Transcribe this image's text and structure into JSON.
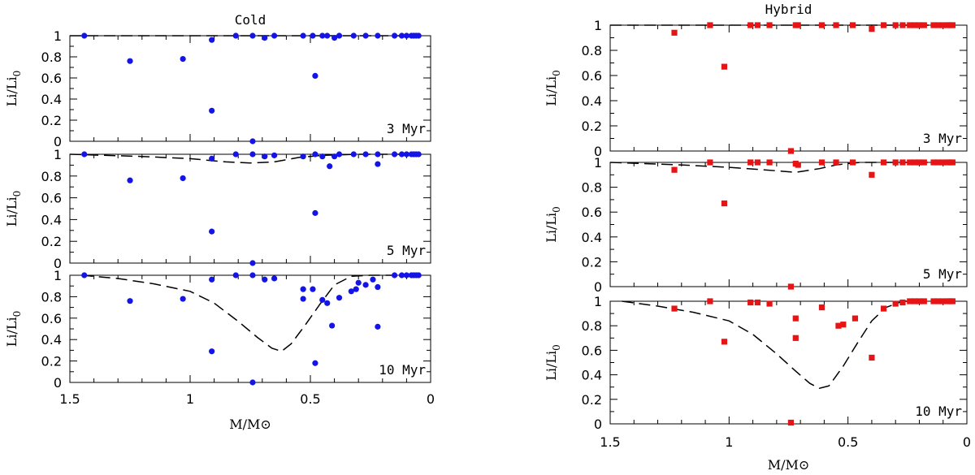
{
  "chart_data": {
    "type": "scatter",
    "x_ticks": [
      "1.5",
      "1",
      "0.5",
      "0"
    ],
    "y_ticks": [
      "0",
      "0.2",
      "0.4",
      "0.6",
      "0.8",
      "1"
    ],
    "xlim": [
      1.5,
      0
    ],
    "ylim": [
      0,
      1
    ],
    "xlabel": "M/M⊙",
    "ylabel": "Li/Li0",
    "ylabel_base": "Li/Li",
    "ylabel_sub": "0",
    "groups": [
      {
        "title": "Cold",
        "marker": "circle",
        "color": "#1414e6",
        "panels": [
          {
            "label": "3 Myr",
            "points": [
              [
                1.44,
                1.0
              ],
              [
                1.25,
                0.76
              ],
              [
                1.03,
                0.78
              ],
              [
                0.91,
                0.29
              ],
              [
                0.91,
                0.96
              ],
              [
                0.81,
                1.0
              ],
              [
                0.74,
                0.0
              ],
              [
                0.74,
                1.0
              ],
              [
                0.69,
                0.98
              ],
              [
                0.65,
                1.0
              ],
              [
                0.53,
                1.0
              ],
              [
                0.49,
                1.0
              ],
              [
                0.48,
                0.62
              ],
              [
                0.45,
                1.0
              ],
              [
                0.43,
                1.0
              ],
              [
                0.4,
                0.98
              ],
              [
                0.38,
                1.0
              ],
              [
                0.32,
                1.0
              ],
              [
                0.27,
                1.0
              ],
              [
                0.22,
                1.0
              ],
              [
                0.15,
                1.0
              ],
              [
                0.12,
                1.0
              ],
              [
                0.1,
                1.0
              ],
              [
                0.08,
                1.0
              ],
              [
                0.07,
                1.0
              ],
              [
                0.06,
                1.0
              ],
              [
                0.05,
                1.0
              ]
            ],
            "curve": [
              [
                1.5,
                1.0
              ],
              [
                0.05,
                1.0
              ]
            ]
          },
          {
            "label": "5 Myr",
            "points": [
              [
                1.44,
                1.0
              ],
              [
                1.25,
                0.76
              ],
              [
                1.03,
                0.78
              ],
              [
                0.91,
                0.29
              ],
              [
                0.91,
                0.96
              ],
              [
                0.81,
                1.0
              ],
              [
                0.74,
                0.0
              ],
              [
                0.74,
                1.0
              ],
              [
                0.69,
                0.98
              ],
              [
                0.65,
                0.99
              ],
              [
                0.53,
                0.98
              ],
              [
                0.48,
                1.0
              ],
              [
                0.48,
                0.46
              ],
              [
                0.45,
                0.98
              ],
              [
                0.42,
                0.89
              ],
              [
                0.4,
                0.98
              ],
              [
                0.38,
                1.0
              ],
              [
                0.32,
                1.0
              ],
              [
                0.27,
                1.0
              ],
              [
                0.22,
                1.0
              ],
              [
                0.22,
                0.91
              ],
              [
                0.15,
                1.0
              ],
              [
                0.12,
                1.0
              ],
              [
                0.1,
                1.0
              ],
              [
                0.08,
                1.0
              ],
              [
                0.07,
                1.0
              ],
              [
                0.06,
                1.0
              ],
              [
                0.05,
                1.0
              ]
            ],
            "curve": [
              [
                1.5,
                1.0
              ],
              [
                1.2,
                0.98
              ],
              [
                1.0,
                0.96
              ],
              [
                0.85,
                0.93
              ],
              [
                0.75,
                0.92
              ],
              [
                0.65,
                0.93
              ],
              [
                0.55,
                0.97
              ],
              [
                0.45,
                0.99
              ],
              [
                0.3,
                1.0
              ],
              [
                0.05,
                1.0
              ]
            ]
          },
          {
            "label": "10 Myr",
            "points": [
              [
                1.44,
                1.0
              ],
              [
                1.25,
                0.76
              ],
              [
                1.03,
                0.78
              ],
              [
                0.91,
                0.29
              ],
              [
                0.91,
                0.96
              ],
              [
                0.81,
                1.0
              ],
              [
                0.74,
                0.0
              ],
              [
                0.74,
                1.0
              ],
              [
                0.69,
                0.96
              ],
              [
                0.65,
                0.97
              ],
              [
                0.53,
                0.87
              ],
              [
                0.53,
                0.78
              ],
              [
                0.49,
                0.87
              ],
              [
                0.48,
                0.18
              ],
              [
                0.45,
                0.77
              ],
              [
                0.43,
                0.74
              ],
              [
                0.41,
                0.53
              ],
              [
                0.38,
                0.79
              ],
              [
                0.33,
                0.85
              ],
              [
                0.31,
                0.87
              ],
              [
                0.3,
                0.93
              ],
              [
                0.27,
                0.91
              ],
              [
                0.24,
                0.96
              ],
              [
                0.22,
                0.52
              ],
              [
                0.22,
                0.89
              ],
              [
                0.15,
                1.0
              ],
              [
                0.12,
                1.0
              ],
              [
                0.1,
                1.0
              ],
              [
                0.08,
                1.0
              ],
              [
                0.07,
                1.0
              ],
              [
                0.06,
                1.0
              ],
              [
                0.05,
                1.0
              ]
            ],
            "curve": [
              [
                1.45,
                1.0
              ],
              [
                1.3,
                0.97
              ],
              [
                1.15,
                0.92
              ],
              [
                1.0,
                0.85
              ],
              [
                0.9,
                0.74
              ],
              [
                0.8,
                0.57
              ],
              [
                0.72,
                0.42
              ],
              [
                0.66,
                0.32
              ],
              [
                0.62,
                0.29
              ],
              [
                0.58,
                0.36
              ],
              [
                0.52,
                0.54
              ],
              [
                0.46,
                0.73
              ],
              [
                0.4,
                0.91
              ],
              [
                0.33,
                0.99
              ],
              [
                0.25,
                1.0
              ],
              [
                0.05,
                1.0
              ]
            ]
          }
        ]
      },
      {
        "title": "Hybrid",
        "marker": "square",
        "color": "#e61414",
        "panels": [
          {
            "label": "3 Myr",
            "points": [
              [
                1.23,
                0.94
              ],
              [
                1.08,
                1.0
              ],
              [
                1.02,
                0.67
              ],
              [
                0.91,
                1.0
              ],
              [
                0.88,
                1.0
              ],
              [
                0.83,
                1.0
              ],
              [
                0.74,
                0.0
              ],
              [
                0.72,
                1.0
              ],
              [
                0.71,
                1.0
              ],
              [
                0.61,
                1.0
              ],
              [
                0.55,
                1.0
              ],
              [
                0.48,
                1.0
              ],
              [
                0.4,
                0.97
              ],
              [
                0.35,
                1.0
              ],
              [
                0.3,
                1.0
              ],
              [
                0.27,
                1.0
              ],
              [
                0.24,
                1.0
              ],
              [
                0.22,
                1.0
              ],
              [
                0.2,
                1.0
              ],
              [
                0.18,
                1.0
              ],
              [
                0.14,
                1.0
              ],
              [
                0.12,
                1.0
              ],
              [
                0.1,
                1.0
              ],
              [
                0.08,
                1.0
              ],
              [
                0.07,
                1.0
              ],
              [
                0.06,
                1.0
              ]
            ],
            "curve": [
              [
                1.5,
                1.0
              ],
              [
                0.05,
                1.0
              ]
            ]
          },
          {
            "label": "5 Myr",
            "points": [
              [
                1.23,
                0.94
              ],
              [
                1.08,
                1.0
              ],
              [
                1.02,
                0.67
              ],
              [
                0.91,
                1.0
              ],
              [
                0.88,
                1.0
              ],
              [
                0.83,
                1.0
              ],
              [
                0.74,
                0.0
              ],
              [
                0.72,
                0.99
              ],
              [
                0.71,
                0.98
              ],
              [
                0.61,
                1.0
              ],
              [
                0.55,
                1.0
              ],
              [
                0.48,
                1.0
              ],
              [
                0.4,
                0.9
              ],
              [
                0.35,
                1.0
              ],
              [
                0.3,
                1.0
              ],
              [
                0.27,
                1.0
              ],
              [
                0.24,
                1.0
              ],
              [
                0.22,
                1.0
              ],
              [
                0.2,
                1.0
              ],
              [
                0.18,
                1.0
              ],
              [
                0.14,
                1.0
              ],
              [
                0.12,
                1.0
              ],
              [
                0.1,
                1.0
              ],
              [
                0.08,
                1.0
              ],
              [
                0.07,
                1.0
              ],
              [
                0.06,
                1.0
              ]
            ],
            "curve": [
              [
                1.5,
                1.0
              ],
              [
                1.2,
                0.98
              ],
              [
                1.0,
                0.96
              ],
              [
                0.85,
                0.94
              ],
              [
                0.72,
                0.92
              ],
              [
                0.62,
                0.95
              ],
              [
                0.55,
                0.98
              ],
              [
                0.45,
                1.0
              ],
              [
                0.05,
                1.0
              ]
            ]
          },
          {
            "label": "10 Myr",
            "points": [
              [
                1.23,
                0.94
              ],
              [
                1.08,
                1.0
              ],
              [
                1.02,
                0.67
              ],
              [
                0.91,
                0.99
              ],
              [
                0.88,
                0.99
              ],
              [
                0.83,
                0.98
              ],
              [
                0.74,
                0.01
              ],
              [
                0.72,
                0.86
              ],
              [
                0.72,
                0.7
              ],
              [
                0.61,
                0.95
              ],
              [
                0.54,
                0.8
              ],
              [
                0.52,
                0.81
              ],
              [
                0.47,
                0.86
              ],
              [
                0.4,
                0.54
              ],
              [
                0.35,
                0.94
              ],
              [
                0.3,
                0.98
              ],
              [
                0.27,
                0.99
              ],
              [
                0.24,
                1.0
              ],
              [
                0.22,
                1.0
              ],
              [
                0.2,
                1.0
              ],
              [
                0.18,
                1.0
              ],
              [
                0.14,
                1.0
              ],
              [
                0.12,
                1.0
              ],
              [
                0.1,
                1.0
              ],
              [
                0.08,
                1.0
              ],
              [
                0.07,
                1.0
              ],
              [
                0.06,
                1.0
              ]
            ],
            "curve": [
              [
                1.45,
                1.0
              ],
              [
                1.3,
                0.96
              ],
              [
                1.15,
                0.91
              ],
              [
                1.0,
                0.84
              ],
              [
                0.9,
                0.73
              ],
              [
                0.8,
                0.57
              ],
              [
                0.72,
                0.43
              ],
              [
                0.66,
                0.33
              ],
              [
                0.62,
                0.29
              ],
              [
                0.58,
                0.31
              ],
              [
                0.52,
                0.47
              ],
              [
                0.46,
                0.66
              ],
              [
                0.4,
                0.84
              ],
              [
                0.34,
                0.95
              ],
              [
                0.27,
                1.0
              ],
              [
                0.05,
                1.0
              ]
            ]
          }
        ]
      }
    ]
  }
}
